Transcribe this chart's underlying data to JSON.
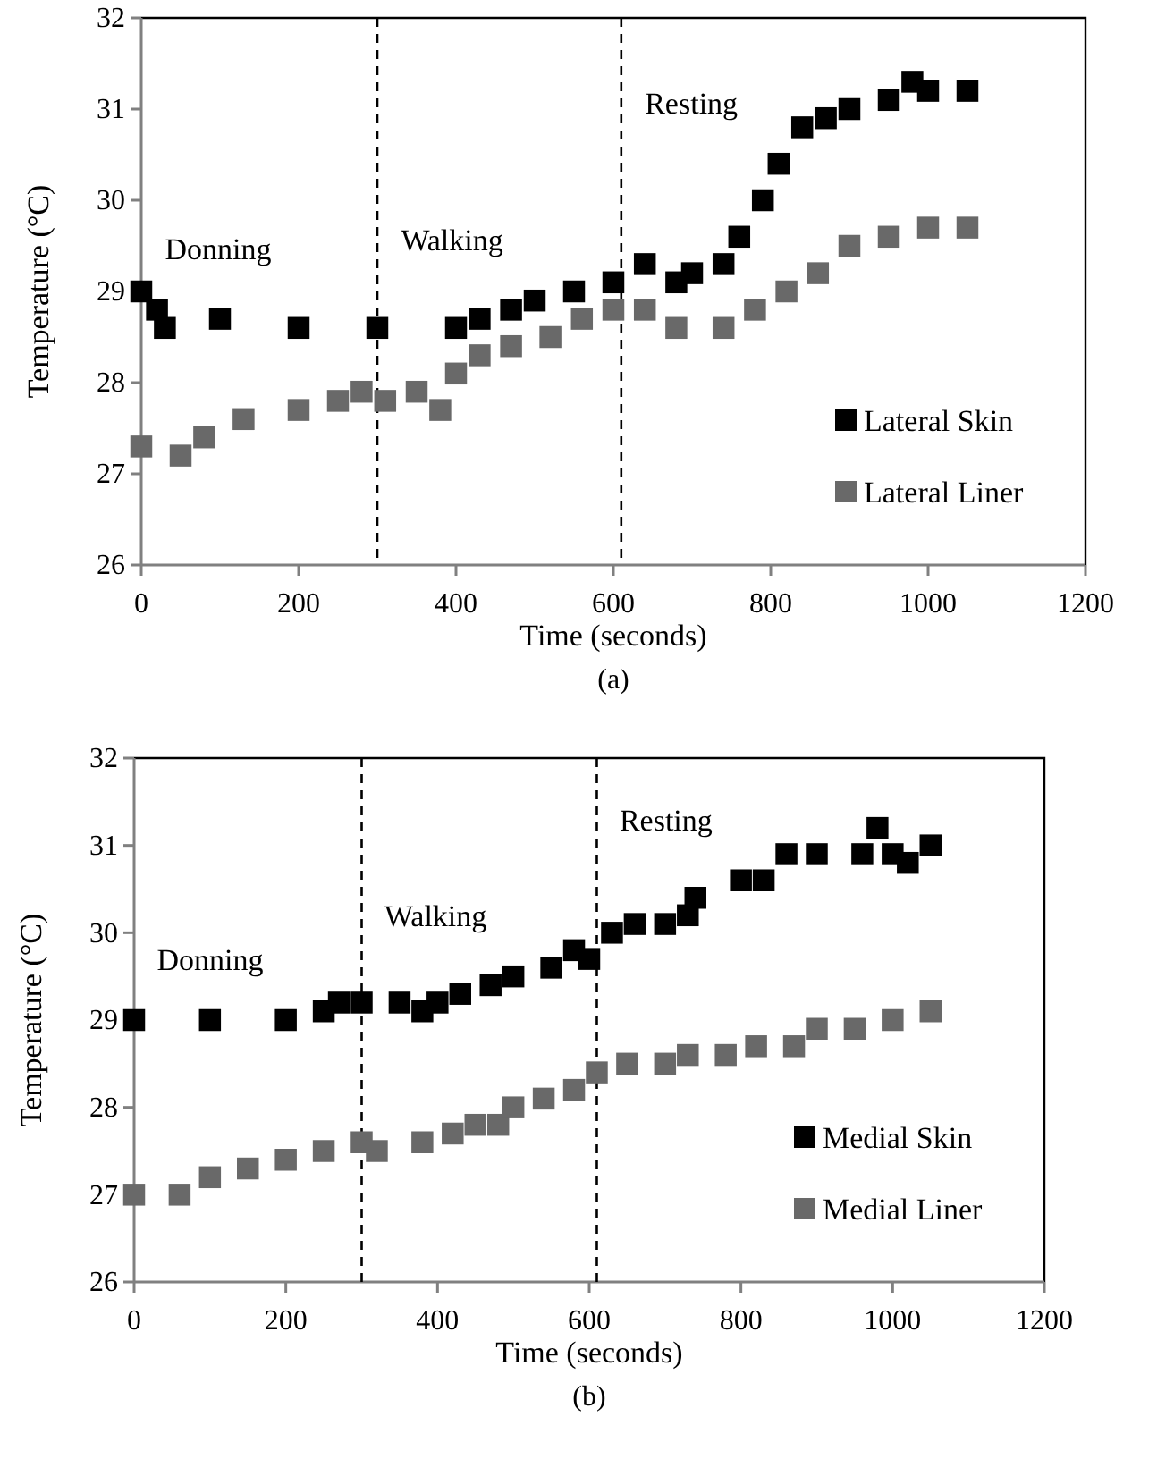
{
  "chart_data": [
    {
      "type": "scatter",
      "xlabel": "Time (seconds)",
      "ylabel": "Temperature (°C)",
      "xlim": [
        0,
        1200
      ],
      "xticks": [
        0,
        200,
        400,
        600,
        800,
        1000,
        1200
      ],
      "ylim": [
        26,
        32
      ],
      "yticks": [
        26,
        27,
        28,
        29,
        30,
        31,
        32
      ],
      "marker": "square",
      "legend": "bottom right",
      "grid": false,
      "series": [
        {
          "name": "Lateral Skin",
          "color": "#000000",
          "x": [
            0,
            20,
            30,
            100,
            200,
            300,
            400,
            430,
            470,
            500,
            550,
            600,
            640,
            680,
            700,
            740,
            760,
            790,
            810,
            840,
            870,
            900,
            950,
            980,
            1000,
            1050
          ],
          "values": [
            29.0,
            28.8,
            28.6,
            28.7,
            28.6,
            28.6,
            28.6,
            28.7,
            28.8,
            28.9,
            29.0,
            29.1,
            29.3,
            29.1,
            29.2,
            29.3,
            29.6,
            30.0,
            30.4,
            30.8,
            30.9,
            31.0,
            31.1,
            31.3,
            31.2,
            31.2
          ]
        },
        {
          "name": "Lateral Liner",
          "color": "#696969",
          "x": [
            0,
            50,
            80,
            130,
            200,
            250,
            280,
            310,
            350,
            380,
            400,
            430,
            470,
            520,
            560,
            600,
            640,
            680,
            740,
            780,
            820,
            860,
            900,
            950,
            1000,
            1050
          ],
          "values": [
            27.3,
            27.2,
            27.4,
            27.6,
            27.7,
            27.8,
            27.9,
            27.8,
            27.9,
            27.7,
            28.1,
            28.3,
            28.4,
            28.5,
            28.7,
            28.8,
            28.8,
            28.6,
            28.6,
            28.8,
            29.0,
            29.2,
            29.5,
            29.6,
            29.7,
            29.7
          ]
        }
      ],
      "ref_lines": [
        {
          "axis": "x",
          "value": 300,
          "line_style": "dashed",
          "color": "#000000"
        },
        {
          "axis": "x",
          "value": 610,
          "line_style": "dashed",
          "color": "#000000"
        }
      ],
      "annotations": [
        "Donning",
        "Walking",
        "Resting",
        "(a)"
      ]
    },
    {
      "type": "scatter",
      "xlabel": "Time (seconds)",
      "ylabel": "Temperature (°C)",
      "xlim": [
        0,
        1200
      ],
      "xticks": [
        0,
        200,
        400,
        600,
        800,
        1000,
        1200
      ],
      "ylim": [
        26,
        32
      ],
      "yticks": [
        26,
        27,
        28,
        29,
        30,
        31,
        32
      ],
      "marker": "square",
      "legend": "bottom right",
      "grid": false,
      "series": [
        {
          "name": "Medial Skin",
          "color": "#000000",
          "x": [
            0,
            100,
            200,
            250,
            270,
            300,
            350,
            380,
            400,
            430,
            470,
            500,
            550,
            580,
            600,
            630,
            660,
            700,
            730,
            740,
            800,
            830,
            860,
            900,
            960,
            980,
            1000,
            1020,
            1050
          ],
          "values": [
            29.0,
            29.0,
            29.0,
            29.1,
            29.2,
            29.2,
            29.2,
            29.1,
            29.2,
            29.3,
            29.4,
            29.5,
            29.6,
            29.8,
            29.7,
            30.0,
            30.1,
            30.1,
            30.2,
            30.4,
            30.6,
            30.6,
            30.9,
            30.9,
            30.9,
            31.2,
            30.9,
            30.8,
            31.0
          ]
        },
        {
          "name": "Medial Liner",
          "color": "#696969",
          "x": [
            0,
            60,
            100,
            150,
            200,
            250,
            300,
            320,
            380,
            420,
            450,
            480,
            500,
            540,
            580,
            610,
            650,
            700,
            730,
            780,
            820,
            870,
            900,
            950,
            1000,
            1050
          ],
          "values": [
            27.0,
            27.0,
            27.2,
            27.3,
            27.4,
            27.5,
            27.6,
            27.5,
            27.6,
            27.7,
            27.8,
            27.8,
            28.0,
            28.1,
            28.2,
            28.4,
            28.5,
            28.5,
            28.6,
            28.6,
            28.7,
            28.7,
            28.9,
            28.9,
            29.0,
            29.1
          ]
        }
      ],
      "ref_lines": [
        {
          "axis": "x",
          "value": 300,
          "line_style": "dashed",
          "color": "#000000"
        },
        {
          "axis": "x",
          "value": 610,
          "line_style": "dashed",
          "color": "#000000"
        }
      ],
      "annotations": [
        "Donning",
        "Walking",
        "Resting",
        "(b)"
      ]
    }
  ]
}
